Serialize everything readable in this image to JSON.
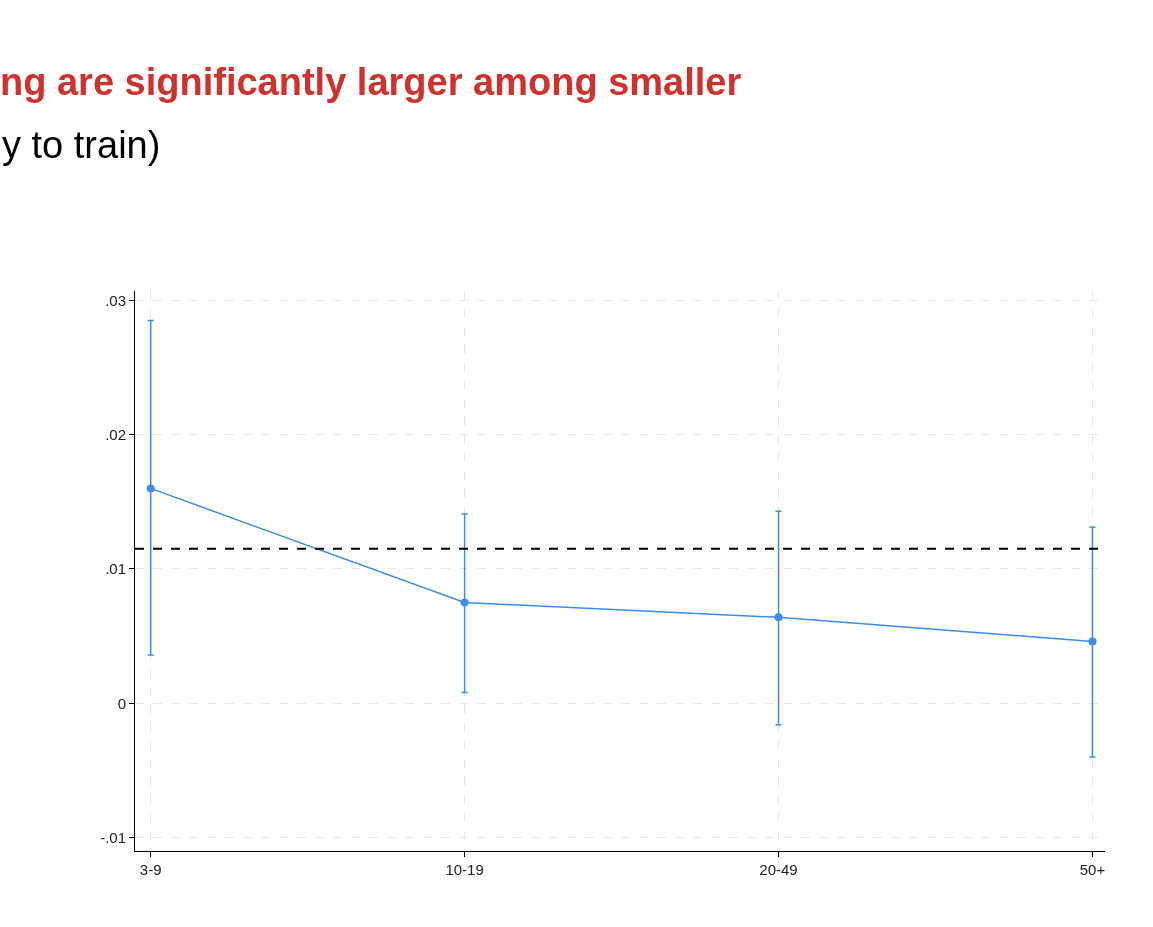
{
  "chart_data": {
    "type": "line",
    "title": "ng are significantly larger among smaller",
    "subtitle": "y to train)",
    "categories": [
      "3-9",
      "10-19",
      "20-49",
      "50+"
    ],
    "series": [
      {
        "color": "#3a8ee6",
        "values": [
          0.016,
          0.0075,
          0.0064,
          0.0046
        ],
        "errors": [
          [
            0.0036,
            0.0285
          ],
          [
            0.0008,
            0.0141
          ],
          [
            -0.0016,
            0.0143
          ],
          [
            -0.004,
            0.0131
          ]
        ]
      }
    ],
    "ylim": [
      -0.011,
      0.0307
    ],
    "yticks": [
      {
        "value": -0.01,
        "label": "-.01"
      },
      0,
      {
        "value": 0.01,
        "label": ".01"
      },
      {
        "value": 0.02,
        "label": ".02"
      },
      {
        "value": 0.03,
        "label": ".03"
      }
    ],
    "ref_lines": [
      {
        "axis": "y",
        "value": 0.0115,
        "color": "#000000",
        "line_style": "dashed"
      }
    ],
    "grid": true,
    "marker": "circle",
    "line_style": "solid"
  }
}
